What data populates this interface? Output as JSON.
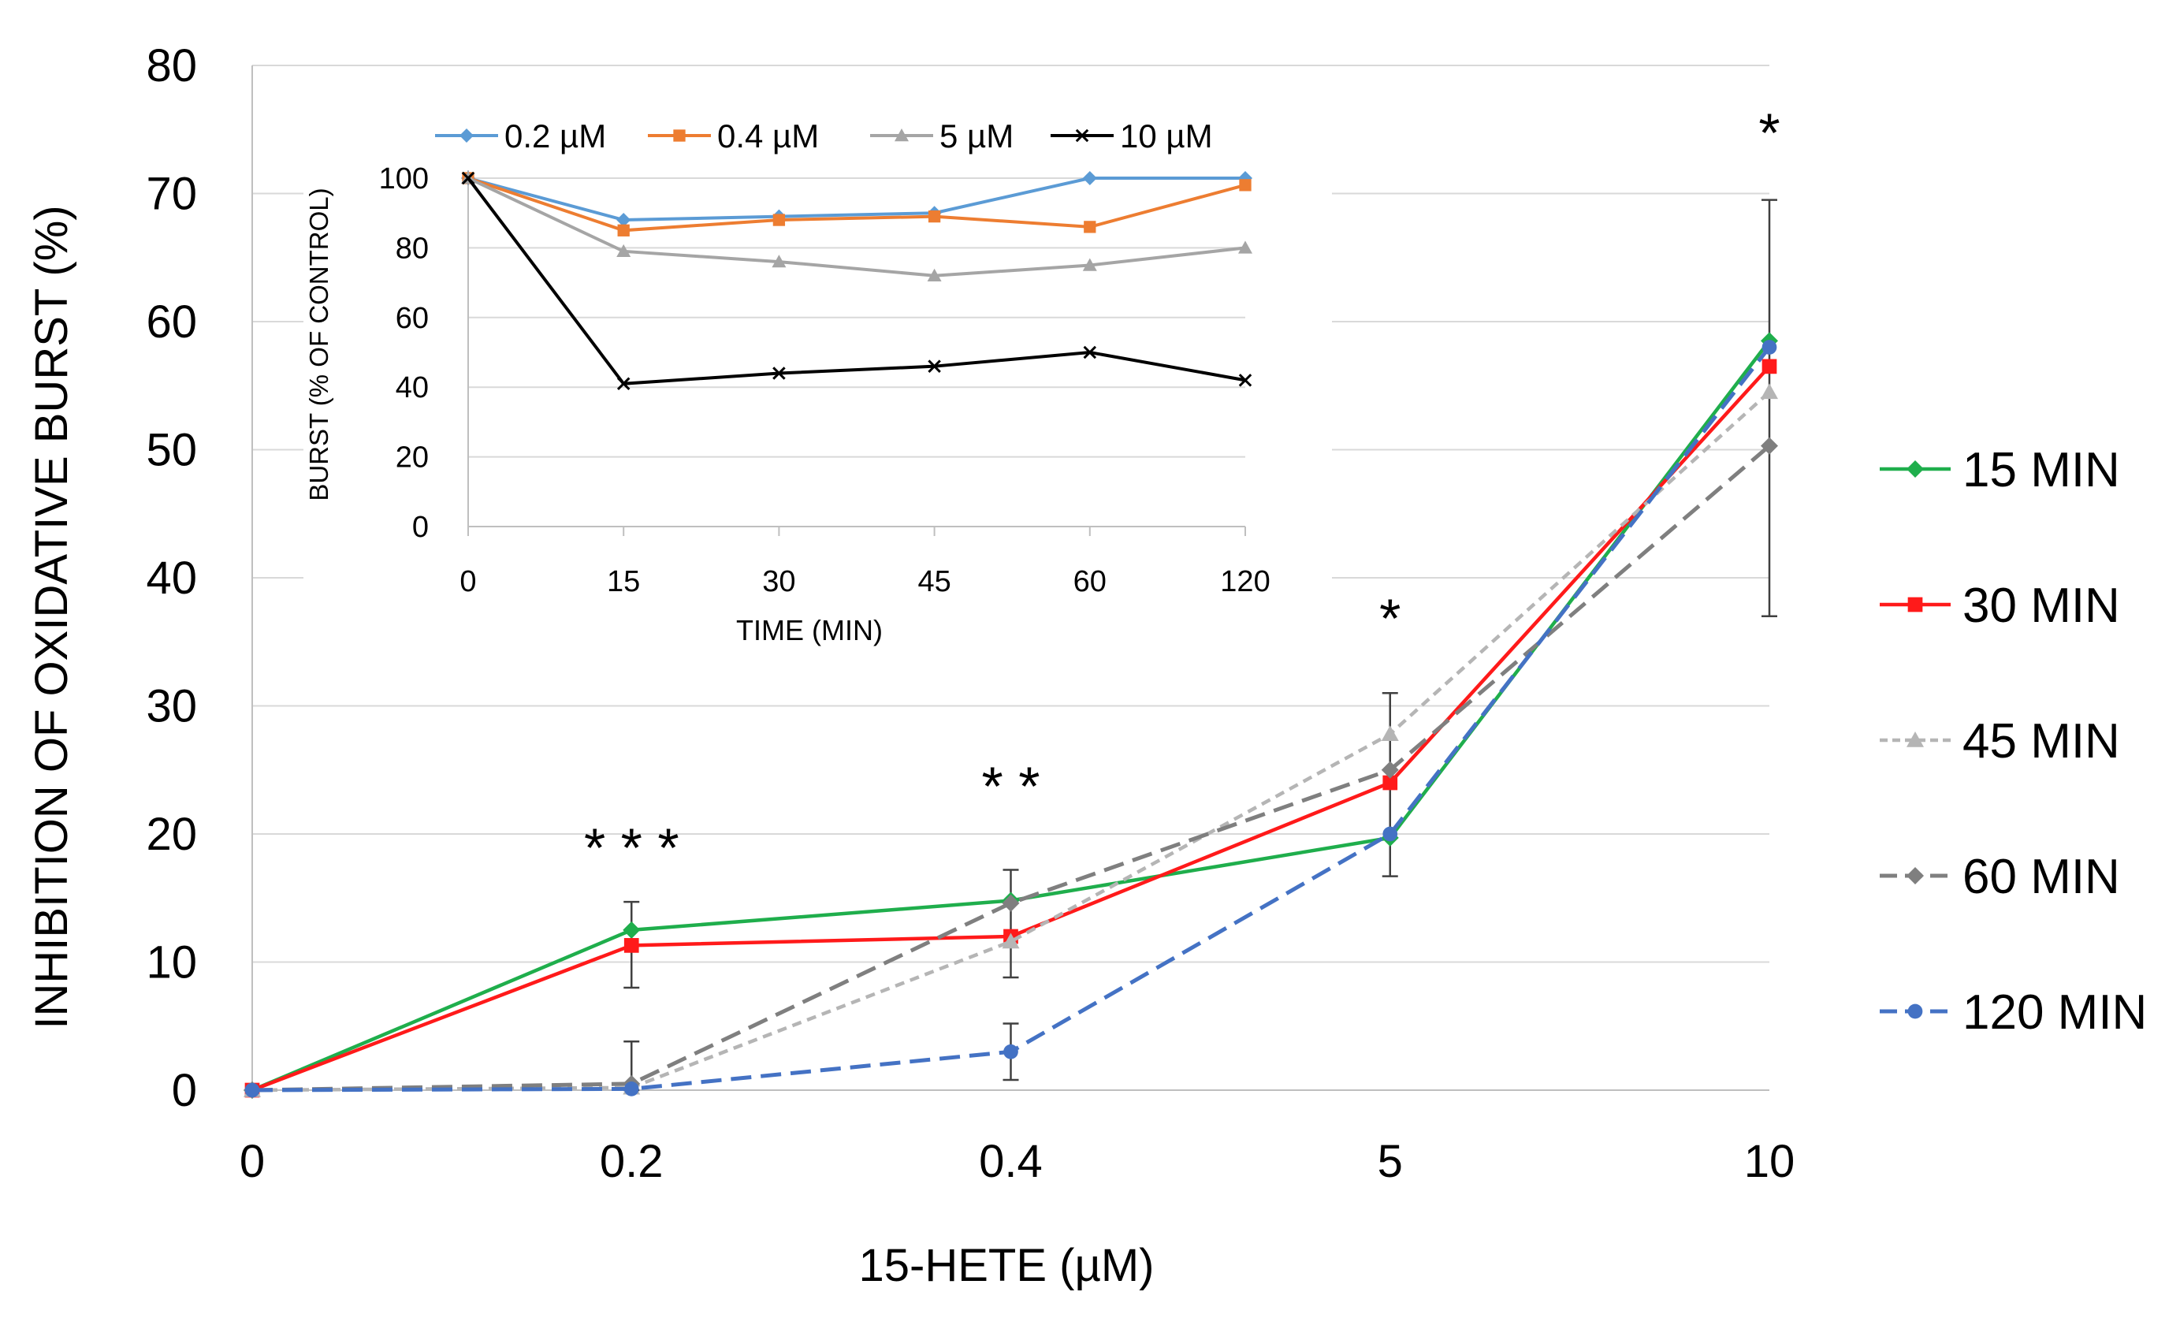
{
  "chart_data": [
    {
      "type": "line",
      "title": "",
      "xlabel": "15-HETE (µM)",
      "ylabel": "INHIBITION OF OXIDATIVE BURST  (%)",
      "categories": [
        "0",
        "0.2",
        "0.4",
        "5",
        "10"
      ],
      "ylim": [
        0,
        80
      ],
      "yticks": [
        0,
        10,
        20,
        30,
        40,
        50,
        60,
        70,
        80
      ],
      "grid": true,
      "legend_position": "right",
      "series": [
        {
          "name": "15 MIN",
          "values": [
            0,
            12.5,
            14.8,
            19.7,
            58.5
          ],
          "color": "#1fae4c",
          "dash": "solid",
          "marker": "diamond"
        },
        {
          "name": "30 MIN",
          "values": [
            0,
            11.3,
            12.0,
            24.0,
            56.5
          ],
          "color": "#ff1a1a",
          "dash": "solid",
          "marker": "square"
        },
        {
          "name": "45 MIN",
          "values": [
            0,
            0.2,
            11.6,
            27.8,
            54.5
          ],
          "color": "#b5b5b5",
          "dash": "dotted",
          "marker": "triangle"
        },
        {
          "name": "60 MIN",
          "values": [
            0,
            0.5,
            14.6,
            25.0,
            50.3
          ],
          "color": "#7f7f7f",
          "dash": "dashed",
          "marker": "diamond"
        },
        {
          "name": "120 MIN",
          "values": [
            0,
            0.1,
            3.0,
            20.0,
            58.0
          ],
          "color": "#4472c4",
          "dash": "dashed",
          "marker": "circle"
        }
      ],
      "error_bars": [
        {
          "category": "0.2",
          "low": 8.0,
          "high": 14.7
        },
        {
          "category": "0.2",
          "low": 0,
          "high": 3.8
        },
        {
          "category": "0.4",
          "low": 8.8,
          "high": 17.2
        },
        {
          "category": "0.4",
          "low": 0.8,
          "high": 5.2
        },
        {
          "category": "5",
          "low": 16.7,
          "high": 31.0
        },
        {
          "category": "10",
          "low": 37.0,
          "high": 69.5
        }
      ],
      "annotations": [
        {
          "text": "* * *",
          "x": "0.2",
          "y": 19.3
        },
        {
          "text": "* *",
          "x": "0.4",
          "y": 24.1
        },
        {
          "text": "*",
          "x": "5",
          "y": 37.2
        },
        {
          "text": "*",
          "x": "10",
          "y": 75.1
        }
      ]
    },
    {
      "type": "line",
      "title": "",
      "xlabel": "TIME (MIN)",
      "ylabel": "BURST (% OF CONTROL)",
      "categories": [
        "0",
        "15",
        "30",
        "45",
        "60",
        "120"
      ],
      "ylim": [
        0,
        100
      ],
      "yticks": [
        0,
        20,
        40,
        60,
        80,
        100
      ],
      "grid": true,
      "legend_position": "top",
      "series": [
        {
          "name": "0.2 µM",
          "values": [
            100,
            88,
            89,
            90,
            100,
            100
          ],
          "color": "#5b9bd5",
          "marker": "diamond"
        },
        {
          "name": "0.4  µM",
          "values": [
            100,
            85,
            88,
            89,
            86,
            98
          ],
          "color": "#ed7d31",
          "marker": "square"
        },
        {
          "name": "5 µM",
          "values": [
            100,
            79,
            76,
            72,
            75,
            80
          ],
          "color": "#a5a5a5",
          "marker": "triangle"
        },
        {
          "name": "10 µM",
          "values": [
            100,
            41,
            44,
            46,
            50,
            42
          ],
          "color": "#000000",
          "marker": "x"
        }
      ]
    }
  ]
}
